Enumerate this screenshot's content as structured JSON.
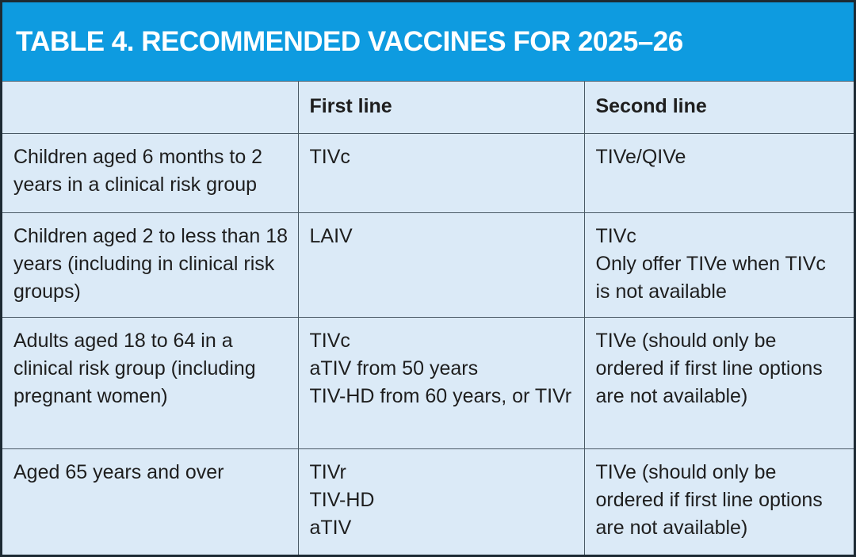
{
  "title": "TABLE 4. RECOMMENDED VACCINES FOR 2025–26",
  "columns": [
    "",
    "First line",
    "Second line"
  ],
  "rows": [
    {
      "group": "Children aged 6 months to 2 years in a clinical risk group",
      "first": [
        "TIVc"
      ],
      "second": [
        "TIVe/QIVe"
      ]
    },
    {
      "group": "Children aged 2 to less than 18 years (including in clinical risk groups)",
      "first": [
        "LAIV"
      ],
      "second": [
        "TIVc",
        "Only offer TIVe when TIVc is not available"
      ]
    },
    {
      "group": "Adults aged 18 to 64 in a clinical risk group (including pregnant women)",
      "first": [
        "TIVc",
        "aTIV from 50 years",
        "TIV-HD from 60 years, or TIVr"
      ],
      "second": [
        "TIVe (should only be ordered if first line options are not available)"
      ]
    },
    {
      "group": "Aged 65 years and over",
      "first": [
        "TIVr",
        "TIV-HD",
        "aTIV"
      ],
      "second": [
        "TIVe (should only be ordered if first line options are not available)"
      ]
    }
  ]
}
